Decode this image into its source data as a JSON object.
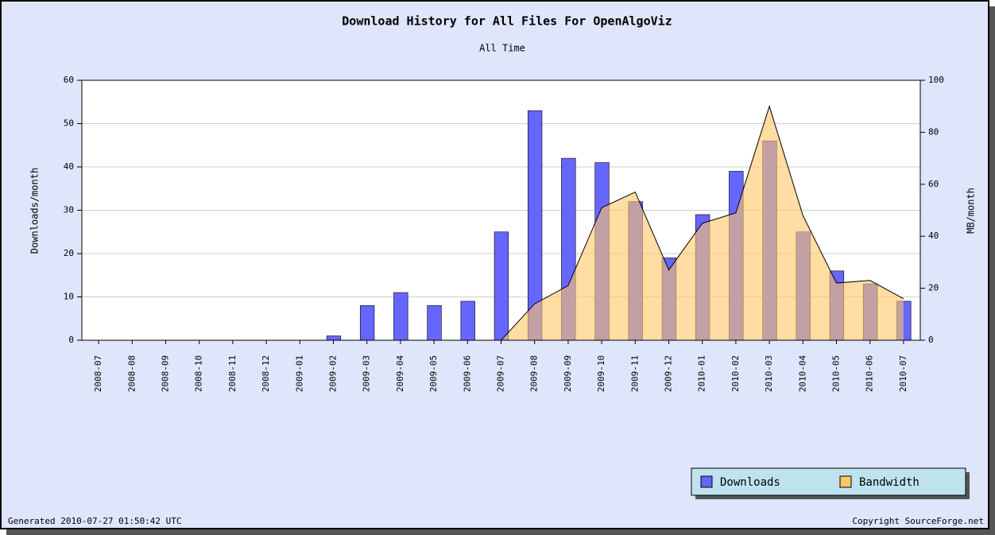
{
  "chart_data": {
    "type": "bar",
    "title": "Download History for All Files For OpenAlgoViz",
    "subtitle": "All Time",
    "ylabel": "Downloads/month",
    "y2label": "MB/month",
    "footer_left": "Generated 2010-07-27 01:50:42 UTC",
    "footer_right": "Copyright SourceForge.net",
    "categories": [
      "2008-07",
      "2008-08",
      "2008-09",
      "2008-10",
      "2008-11",
      "2008-12",
      "2009-01",
      "2009-02",
      "2009-03",
      "2009-04",
      "2009-05",
      "2009-06",
      "2009-07",
      "2009-08",
      "2009-09",
      "2009-10",
      "2009-11",
      "2009-12",
      "2010-01",
      "2010-02",
      "2010-03",
      "2010-04",
      "2010-05",
      "2010-06",
      "2010-07"
    ],
    "series": [
      {
        "name": "Downloads",
        "color": "#6666ff",
        "type": "bar",
        "values": [
          0,
          0,
          0,
          0,
          0,
          0,
          0,
          1,
          8,
          11,
          8,
          9,
          25,
          53,
          42,
          41,
          32,
          19,
          29,
          39,
          46,
          25,
          16,
          13,
          9
        ]
      },
      {
        "name": "Bandwidth",
        "color": "#ffc766",
        "type": "area",
        "axis": "y2",
        "values": [
          0,
          0,
          0,
          0,
          0,
          0,
          0,
          0,
          0,
          0,
          0,
          0,
          0,
          14,
          21,
          51,
          57,
          27,
          45,
          49,
          90,
          48,
          22,
          23,
          16
        ]
      }
    ],
    "ylim": [
      0,
      60
    ],
    "yticks": [
      0,
      10,
      20,
      30,
      40,
      50,
      60
    ],
    "y2lim": [
      0,
      100
    ],
    "y2ticks": [
      0,
      20,
      40,
      60,
      80,
      100
    ],
    "grid": true,
    "legend": "bottom-right"
  }
}
